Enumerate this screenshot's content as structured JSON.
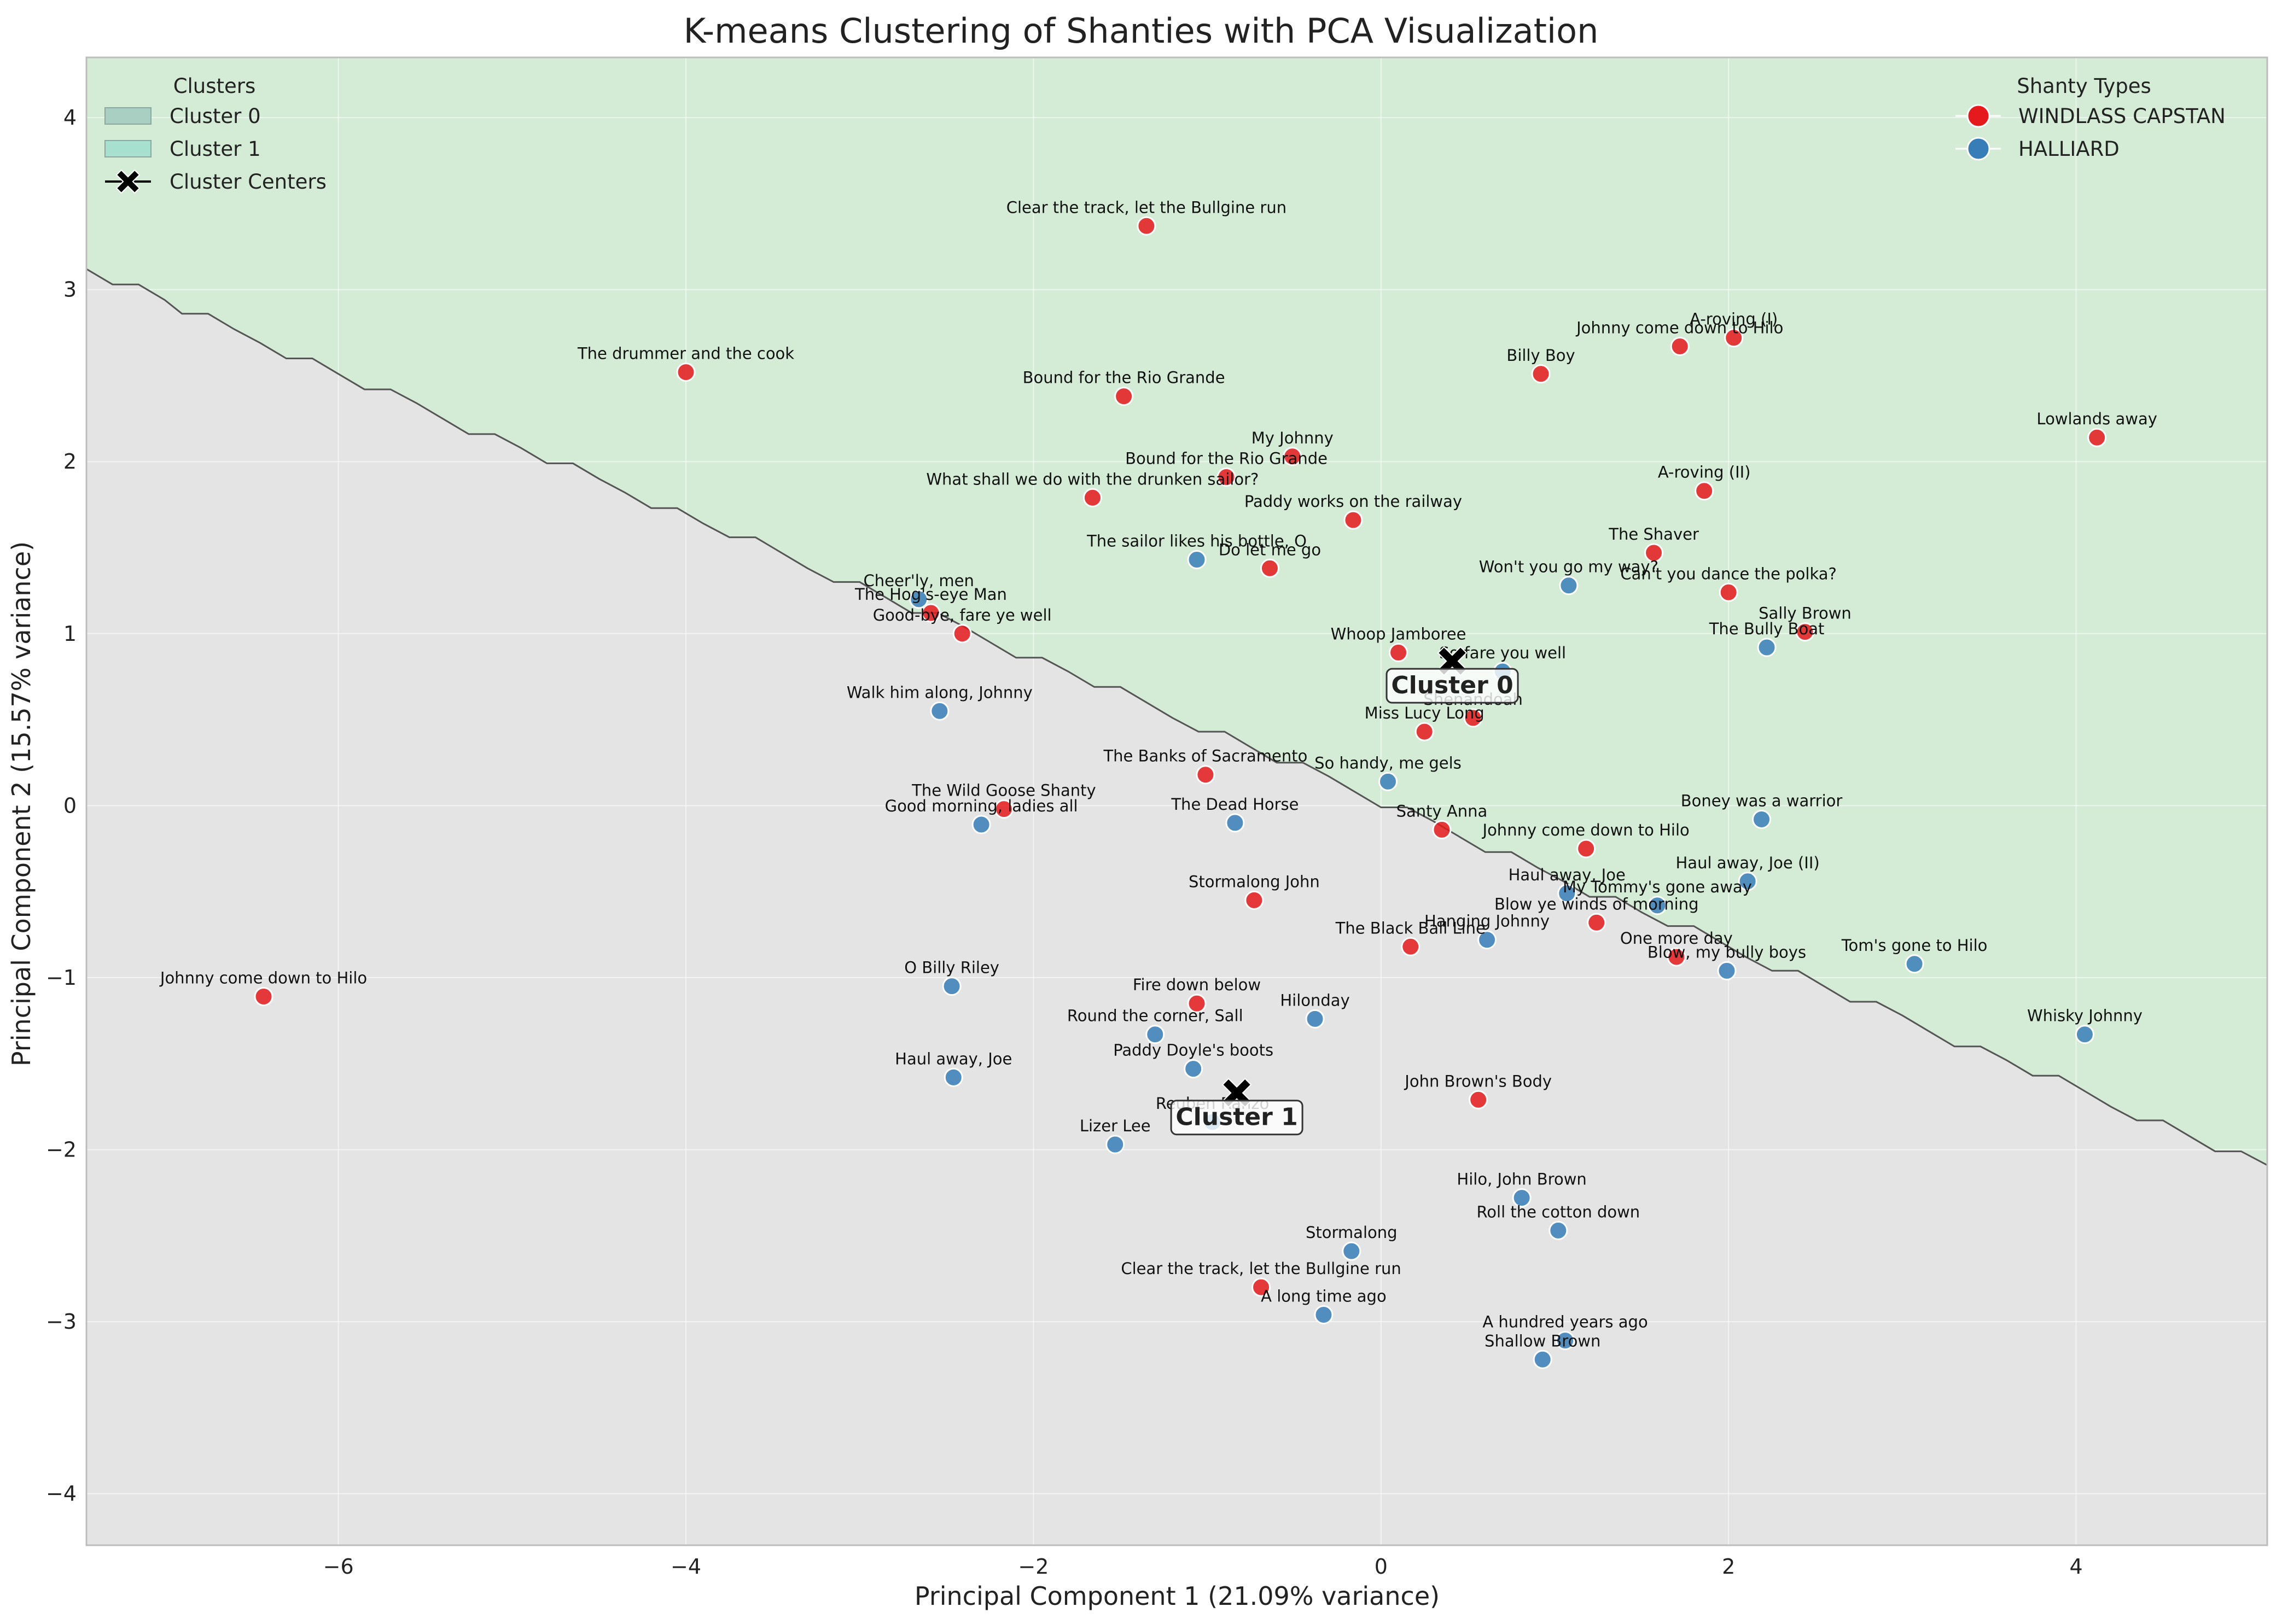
{
  "chart_data": {
    "type": "scatter",
    "title": "K-means Clustering of Shanties with PCA Visualization",
    "xlabel": "Principal Component 1 (21.09% variance)",
    "ylabel": "Principal Component 2 (15.57% variance)",
    "xlim": [
      -7.45,
      5.1
    ],
    "ylim": [
      -4.3,
      4.35
    ],
    "xticks": [
      -6,
      -4,
      -2,
      0,
      2,
      4
    ],
    "xtick_labels": [
      "−6",
      "−4",
      "−2",
      "0",
      "2",
      "4"
    ],
    "yticks": [
      -4,
      -3,
      -2,
      -1,
      0,
      1,
      2,
      3,
      4
    ],
    "ytick_labels": [
      "−4",
      "−3",
      "−2",
      "−1",
      "0",
      "1",
      "2",
      "3",
      "4"
    ],
    "grid": true,
    "colors": {
      "windlass": "#e41a1c",
      "halliard": "#377eb8",
      "cluster0_region": "#d4ebd6",
      "cluster1_region": "#e4e4e4",
      "boundary": "#555555",
      "cluster0_patch": "#a8cfc2",
      "cluster1_patch": "#a8e0d0"
    },
    "decision_boundary": [
      [
        -7.45,
        3.12
      ],
      [
        -7.3,
        3.03
      ],
      [
        -7.15,
        3.03
      ],
      [
        -7.0,
        2.94
      ],
      [
        -6.9,
        2.86
      ],
      [
        -6.75,
        2.86
      ],
      [
        -6.6,
        2.77
      ],
      [
        -6.45,
        2.69
      ],
      [
        -6.3,
        2.6
      ],
      [
        -6.15,
        2.6
      ],
      [
        -6.0,
        2.51
      ],
      [
        -5.85,
        2.42
      ],
      [
        -5.7,
        2.42
      ],
      [
        -5.55,
        2.34
      ],
      [
        -5.4,
        2.25
      ],
      [
        -5.25,
        2.16
      ],
      [
        -5.1,
        2.16
      ],
      [
        -4.95,
        2.08
      ],
      [
        -4.8,
        1.99
      ],
      [
        -4.65,
        1.99
      ],
      [
        -4.5,
        1.9
      ],
      [
        -4.35,
        1.82
      ],
      [
        -4.2,
        1.73
      ],
      [
        -4.05,
        1.73
      ],
      [
        -3.9,
        1.64
      ],
      [
        -3.75,
        1.56
      ],
      [
        -3.6,
        1.56
      ],
      [
        -3.45,
        1.47
      ],
      [
        -3.3,
        1.38
      ],
      [
        -3.15,
        1.3
      ],
      [
        -3.0,
        1.3
      ],
      [
        -2.85,
        1.21
      ],
      [
        -2.7,
        1.12
      ],
      [
        -2.55,
        1.12
      ],
      [
        -2.4,
        1.04
      ],
      [
        -2.25,
        0.95
      ],
      [
        -2.1,
        0.86
      ],
      [
        -1.95,
        0.86
      ],
      [
        -1.8,
        0.78
      ],
      [
        -1.65,
        0.69
      ],
      [
        -1.5,
        0.69
      ],
      [
        -1.35,
        0.6
      ],
      [
        -1.2,
        0.51
      ],
      [
        -1.05,
        0.43
      ],
      [
        -0.9,
        0.43
      ],
      [
        -0.75,
        0.34
      ],
      [
        -0.6,
        0.25
      ],
      [
        -0.45,
        0.25
      ],
      [
        -0.3,
        0.17
      ],
      [
        -0.15,
        0.08
      ],
      [
        0.0,
        -0.01
      ],
      [
        0.15,
        -0.01
      ],
      [
        0.3,
        -0.09
      ],
      [
        0.45,
        -0.18
      ],
      [
        0.6,
        -0.27
      ],
      [
        0.75,
        -0.27
      ],
      [
        0.9,
        -0.36
      ],
      [
        1.05,
        -0.44
      ],
      [
        1.2,
        -0.53
      ],
      [
        1.35,
        -0.53
      ],
      [
        1.5,
        -0.62
      ],
      [
        1.65,
        -0.7
      ],
      [
        1.8,
        -0.7
      ],
      [
        1.95,
        -0.79
      ],
      [
        2.1,
        -0.88
      ],
      [
        2.25,
        -0.96
      ],
      [
        2.4,
        -0.96
      ],
      [
        2.55,
        -1.05
      ],
      [
        2.7,
        -1.14
      ],
      [
        2.85,
        -1.14
      ],
      [
        3.0,
        -1.22
      ],
      [
        3.15,
        -1.31
      ],
      [
        3.3,
        -1.4
      ],
      [
        3.45,
        -1.4
      ],
      [
        3.6,
        -1.48
      ],
      [
        3.75,
        -1.57
      ],
      [
        3.9,
        -1.57
      ],
      [
        4.05,
        -1.66
      ],
      [
        4.2,
        -1.75
      ],
      [
        4.35,
        -1.83
      ],
      [
        4.5,
        -1.83
      ],
      [
        4.65,
        -1.92
      ],
      [
        4.8,
        -2.01
      ],
      [
        4.95,
        -2.01
      ],
      [
        5.1,
        -2.09
      ]
    ],
    "points": [
      {
        "label": "Clear the track, let the Bullgine run",
        "x": -1.35,
        "y": 3.37,
        "type": "WINDLASS CAPSTAN"
      },
      {
        "label": "The drummer and the cook",
        "x": -4.0,
        "y": 2.52,
        "type": "WINDLASS CAPSTAN"
      },
      {
        "label": "Bound for the Rio Grande",
        "x": -1.48,
        "y": 2.38,
        "type": "WINDLASS CAPSTAN"
      },
      {
        "label": "Billy Boy",
        "x": 0.92,
        "y": 2.51,
        "type": "WINDLASS CAPSTAN"
      },
      {
        "label": "Johnny come down to Hilo",
        "x": 1.72,
        "y": 2.67,
        "type": "WINDLASS CAPSTAN"
      },
      {
        "label": "A-roving (I)",
        "x": 2.03,
        "y": 2.72,
        "type": "WINDLASS CAPSTAN"
      },
      {
        "label": "Lowlands away",
        "x": 4.12,
        "y": 2.14,
        "type": "WINDLASS CAPSTAN"
      },
      {
        "label": "My Johnny",
        "x": -0.51,
        "y": 2.03,
        "type": "WINDLASS CAPSTAN"
      },
      {
        "label": "Bound for the Rio Grande",
        "x": -0.89,
        "y": 1.91,
        "type": "WINDLASS CAPSTAN"
      },
      {
        "label": "What shall we do with the drunken sailor?",
        "x": -1.66,
        "y": 1.79,
        "type": "WINDLASS CAPSTAN"
      },
      {
        "label": "Paddy works on the railway",
        "x": -0.16,
        "y": 1.66,
        "type": "WINDLASS CAPSTAN"
      },
      {
        "label": "A-roving (II)",
        "x": 1.86,
        "y": 1.83,
        "type": "WINDLASS CAPSTAN"
      },
      {
        "label": "The Shaver",
        "x": 1.57,
        "y": 1.47,
        "type": "WINDLASS CAPSTAN"
      },
      {
        "label": "The sailor likes his bottle, O",
        "x": -1.06,
        "y": 1.43,
        "type": "HALLIARD"
      },
      {
        "label": "Do let me go",
        "x": -0.64,
        "y": 1.38,
        "type": "WINDLASS CAPSTAN"
      },
      {
        "label": "Won't you go my way?",
        "x": 1.08,
        "y": 1.28,
        "type": "HALLIARD"
      },
      {
        "label": "Can't you dance the polka?",
        "x": 2.0,
        "y": 1.24,
        "type": "WINDLASS CAPSTAN"
      },
      {
        "label": "Cheer'ly, men",
        "x": -2.66,
        "y": 1.2,
        "type": "HALLIARD"
      },
      {
        "label": "The Hog's-eye Man",
        "x": -2.59,
        "y": 1.12,
        "type": "WINDLASS CAPSTAN"
      },
      {
        "label": "Good-bye, fare ye well",
        "x": -2.41,
        "y": 1.0,
        "type": "WINDLASS CAPSTAN"
      },
      {
        "label": "Sally Brown",
        "x": 2.44,
        "y": 1.01,
        "type": "WINDLASS CAPSTAN"
      },
      {
        "label": "The Bully Boat",
        "x": 2.22,
        "y": 0.92,
        "type": "HALLIARD"
      },
      {
        "label": "Whoop Jamboree",
        "x": 0.1,
        "y": 0.89,
        "type": "WINDLASS CAPSTAN"
      },
      {
        "label": "So fare you well",
        "x": 0.7,
        "y": 0.78,
        "type": "HALLIARD"
      },
      {
        "label": "Walk him along, Johnny",
        "x": -2.54,
        "y": 0.55,
        "type": "HALLIARD"
      },
      {
        "label": "Shenandoah",
        "x": 0.53,
        "y": 0.51,
        "type": "WINDLASS CAPSTAN"
      },
      {
        "label": "Miss Lucy Long",
        "x": 0.25,
        "y": 0.43,
        "type": "WINDLASS CAPSTAN"
      },
      {
        "label": "The Banks of Sacramento",
        "x": -1.01,
        "y": 0.18,
        "type": "WINDLASS CAPSTAN"
      },
      {
        "label": "So handy, me gels",
        "x": 0.04,
        "y": 0.14,
        "type": "HALLIARD"
      },
      {
        "label": "The Wild Goose Shanty",
        "x": -2.17,
        "y": -0.02,
        "type": "WINDLASS CAPSTAN"
      },
      {
        "label": "Good morning, ladies all",
        "x": -2.3,
        "y": -0.11,
        "type": "HALLIARD"
      },
      {
        "label": "The Dead Horse",
        "x": -0.84,
        "y": -0.1,
        "type": "HALLIARD"
      },
      {
        "label": "Santy Anna",
        "x": 0.35,
        "y": -0.14,
        "type": "WINDLASS CAPSTAN"
      },
      {
        "label": "Johnny come down to Hilo",
        "x": 1.18,
        "y": -0.25,
        "type": "WINDLASS CAPSTAN"
      },
      {
        "label": "Boney was a warrior",
        "x": 2.19,
        "y": -0.08,
        "type": "HALLIARD"
      },
      {
        "label": "Haul away, Joe (II)",
        "x": 2.11,
        "y": -0.44,
        "type": "HALLIARD"
      },
      {
        "label": "Stormalong John",
        "x": -0.73,
        "y": -0.55,
        "type": "WINDLASS CAPSTAN"
      },
      {
        "label": "Haul away, Joe",
        "x": 1.07,
        "y": -0.51,
        "type": "HALLIARD"
      },
      {
        "label": "My Tommy's gone away",
        "x": 1.59,
        "y": -0.58,
        "type": "HALLIARD"
      },
      {
        "label": "Blow ye winds of morning",
        "x": 1.24,
        "y": -0.68,
        "type": "WINDLASS CAPSTAN"
      },
      {
        "label": "Hanging Johnny",
        "x": 0.61,
        "y": -0.78,
        "type": "HALLIARD"
      },
      {
        "label": "The Black Ball Line",
        "x": 0.17,
        "y": -0.82,
        "type": "WINDLASS CAPSTAN"
      },
      {
        "label": "One more day",
        "x": 1.7,
        "y": -0.88,
        "type": "WINDLASS CAPSTAN"
      },
      {
        "label": "Blow, my bully boys",
        "x": 1.99,
        "y": -0.96,
        "type": "HALLIARD"
      },
      {
        "label": "Tom's gone to Hilo",
        "x": 3.07,
        "y": -0.92,
        "type": "HALLIARD"
      },
      {
        "label": "Johnny come down to Hilo",
        "x": -6.43,
        "y": -1.11,
        "type": "WINDLASS CAPSTAN"
      },
      {
        "label": "O Billy Riley",
        "x": -2.47,
        "y": -1.05,
        "type": "HALLIARD"
      },
      {
        "label": "Fire down below",
        "x": -1.06,
        "y": -1.15,
        "type": "WINDLASS CAPSTAN"
      },
      {
        "label": "Hilonday",
        "x": -0.38,
        "y": -1.24,
        "type": "HALLIARD"
      },
      {
        "label": "Whisky Johnny",
        "x": 4.05,
        "y": -1.33,
        "type": "HALLIARD"
      },
      {
        "label": "Round the corner, Sall",
        "x": -1.3,
        "y": -1.33,
        "type": "HALLIARD"
      },
      {
        "label": "Paddy Doyle's boots",
        "x": -1.08,
        "y": -1.53,
        "type": "HALLIARD"
      },
      {
        "label": "Haul away, Joe",
        "x": -2.46,
        "y": -1.58,
        "type": "HALLIARD"
      },
      {
        "label": "John Brown's Body",
        "x": 0.56,
        "y": -1.71,
        "type": "WINDLASS CAPSTAN"
      },
      {
        "label": "Reuben Ranzo",
        "x": -0.97,
        "y": -1.84,
        "type": "HALLIARD"
      },
      {
        "label": "Lizer Lee",
        "x": -1.53,
        "y": -1.97,
        "type": "HALLIARD"
      },
      {
        "label": "Hilo, John Brown",
        "x": 0.81,
        "y": -2.28,
        "type": "HALLIARD"
      },
      {
        "label": "Roll the cotton down",
        "x": 1.02,
        "y": -2.47,
        "type": "HALLIARD"
      },
      {
        "label": "Stormalong",
        "x": -0.17,
        "y": -2.59,
        "type": "HALLIARD"
      },
      {
        "label": "Clear the track, let the Bullgine run",
        "x": -0.69,
        "y": -2.8,
        "type": "WINDLASS CAPSTAN"
      },
      {
        "label": "A long time ago",
        "x": -0.33,
        "y": -2.96,
        "type": "HALLIARD"
      },
      {
        "label": "A hundred years ago",
        "x": 1.06,
        "y": -3.11,
        "type": "HALLIARD"
      },
      {
        "label": "Shallow Brown",
        "x": 0.93,
        "y": -3.22,
        "type": "HALLIARD"
      }
    ],
    "centers": [
      {
        "label": "Cluster 0",
        "x": 0.41,
        "y": 0.84
      },
      {
        "label": "Cluster 1",
        "x": -0.83,
        "y": -1.67
      }
    ],
    "legend_clusters": {
      "title": "Clusters",
      "placement": "top-left",
      "items": [
        "Cluster 0",
        "Cluster 1",
        "Cluster Centers"
      ]
    },
    "legend_types": {
      "title": "Shanty Types",
      "placement": "top-right",
      "items": [
        "WINDLASS CAPSTAN",
        "HALLIARD"
      ]
    }
  }
}
